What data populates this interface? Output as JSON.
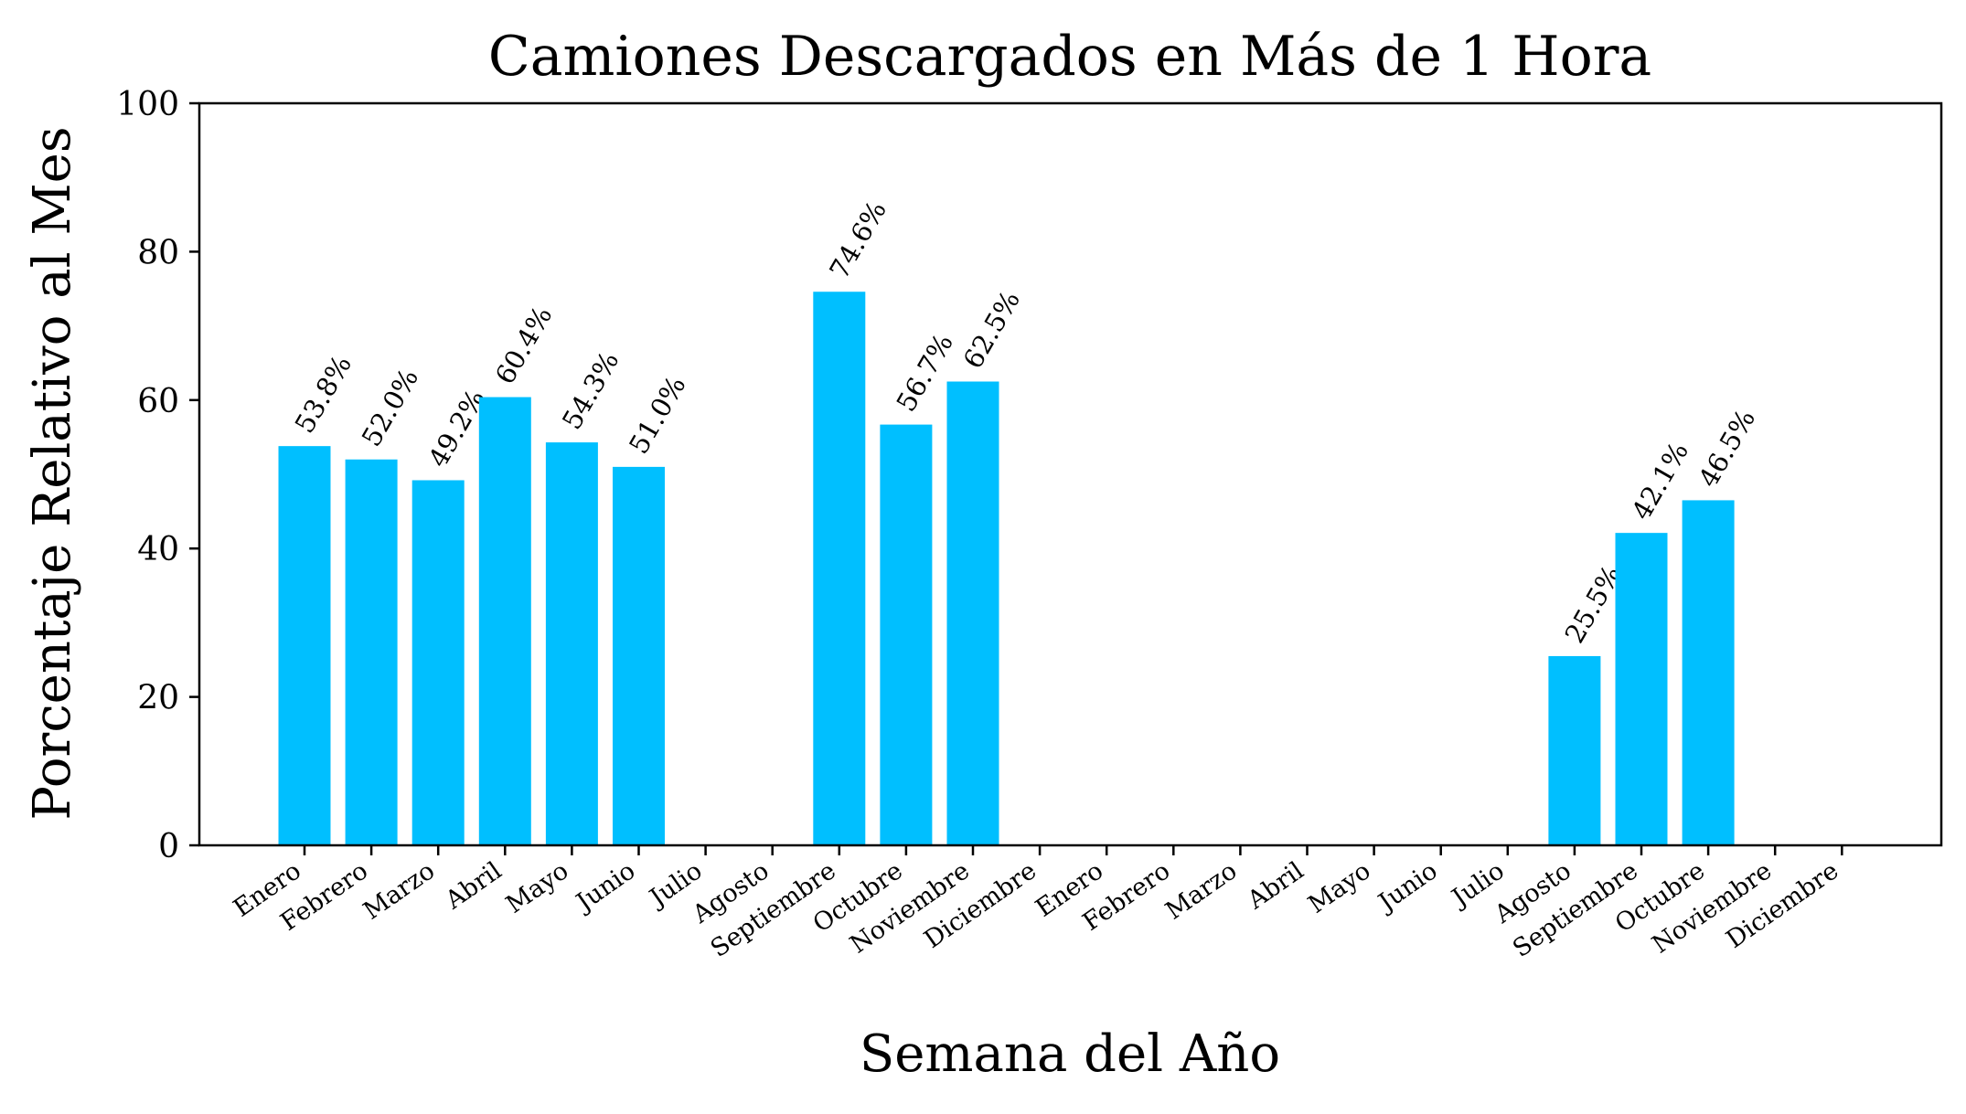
{
  "chart_data": {
    "type": "bar",
    "title": "Camiones Descargados en Más de 1 Hora",
    "xlabel": "Semana del Año",
    "ylabel": "Porcentaje Relativo al Mes",
    "ylim": [
      0,
      100
    ],
    "yticks": [
      "0",
      "20",
      "40",
      "60",
      "80",
      "100"
    ],
    "grid": false,
    "bar_color": "#00BFFF",
    "categories": [
      "Enero",
      "Febrero",
      "Marzo",
      "Abril",
      "Mayo",
      "Junio",
      "Julio",
      "Agosto",
      "Septiembre",
      "Octubre",
      "Noviembre",
      "Diciembre",
      "Enero",
      "Febrero",
      "Marzo",
      "Abril",
      "Mayo",
      "Junio",
      "Julio",
      "Agosto",
      "Septiembre",
      "Octubre",
      "Noviembre",
      "Diciembre"
    ],
    "values": [
      53.8,
      52.0,
      49.2,
      60.4,
      54.3,
      51.0,
      null,
      null,
      74.6,
      56.7,
      62.5,
      null,
      null,
      null,
      null,
      null,
      null,
      null,
      null,
      25.5,
      42.1,
      46.5,
      null,
      null
    ],
    "data_labels": [
      "53.8%",
      "52.0%",
      "49.2%",
      "60.4%",
      "54.3%",
      "51.0%",
      "",
      "",
      "74.6%",
      "56.7%",
      "62.5%",
      "",
      "",
      "",
      "",
      "",
      "",
      "",
      "",
      "25.5%",
      "42.1%",
      "46.5%",
      "",
      ""
    ]
  }
}
